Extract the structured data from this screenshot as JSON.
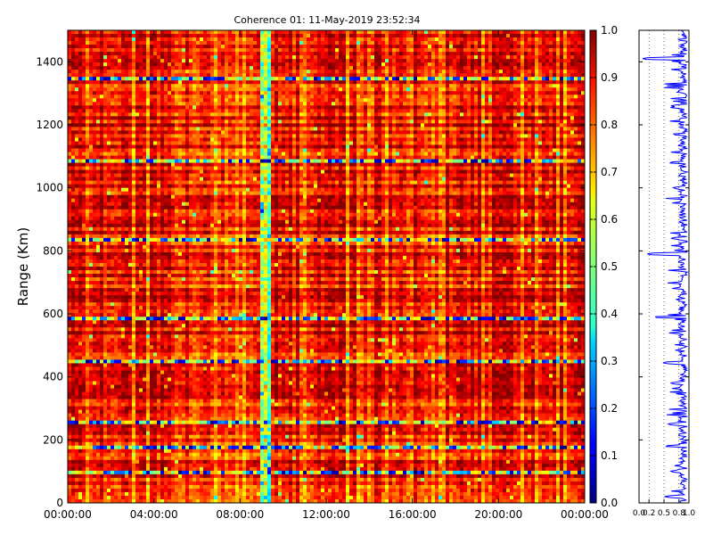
{
  "chart_data": [
    {
      "type": "heatmap",
      "title": "Coherence 01: 11-May-2019 23:52:34",
      "xlabel": "",
      "ylabel": "Range (Km)",
      "x_range": [
        "00:00:00",
        "00:00:00"
      ],
      "ylim": [
        0,
        1500
      ],
      "x_ticks": [
        "00:00:00",
        "04:00:00",
        "08:00:00",
        "12:00:00",
        "16:00:00",
        "20:00:00",
        "00:00:00"
      ],
      "y_ticks": [
        "0",
        "200",
        "400",
        "600",
        "800",
        "1000",
        "1200",
        "1400"
      ],
      "value_range": [
        0,
        1
      ],
      "colormap": "jet",
      "colorbar_ticks": [
        "0.0",
        "0.1",
        "0.2",
        "0.3",
        "0.4",
        "0.5",
        "0.6",
        "0.7",
        "0.8",
        "0.9",
        "1.0"
      ],
      "low_coherence_range_bands_km": [
        100,
        180,
        260,
        445,
        590,
        835,
        1080,
        1345
      ],
      "low_coherence_time": "09:10:00",
      "grid": false
    },
    {
      "type": "line",
      "title": "",
      "xlabel": "",
      "ylabel": "",
      "xlim": [
        0,
        1
      ],
      "ylim": [
        0,
        1500
      ],
      "x_ticks": [
        "0.0",
        "0.2",
        "0.5",
        "0.8",
        "1.0"
      ],
      "grid": "vertical-dotted",
      "line_color": "#0000ff",
      "profile_dips": [
        {
          "range_km": 1410,
          "value": 0.05
        },
        {
          "range_km": 1260,
          "value": 0.62
        },
        {
          "range_km": 1170,
          "value": 0.65
        },
        {
          "range_km": 1080,
          "value": 0.58
        },
        {
          "range_km": 1000,
          "value": 0.65
        },
        {
          "range_km": 840,
          "value": 0.62
        },
        {
          "range_km": 790,
          "value": 0.15
        },
        {
          "range_km": 590,
          "value": 0.28
        },
        {
          "range_km": 445,
          "value": 0.45
        },
        {
          "range_km": 380,
          "value": 0.6
        },
        {
          "range_km": 250,
          "value": 0.55
        },
        {
          "range_km": 180,
          "value": 0.5
        },
        {
          "range_km": 100,
          "value": 0.6
        },
        {
          "range_km": 20,
          "value": 0.5
        }
      ]
    }
  ]
}
